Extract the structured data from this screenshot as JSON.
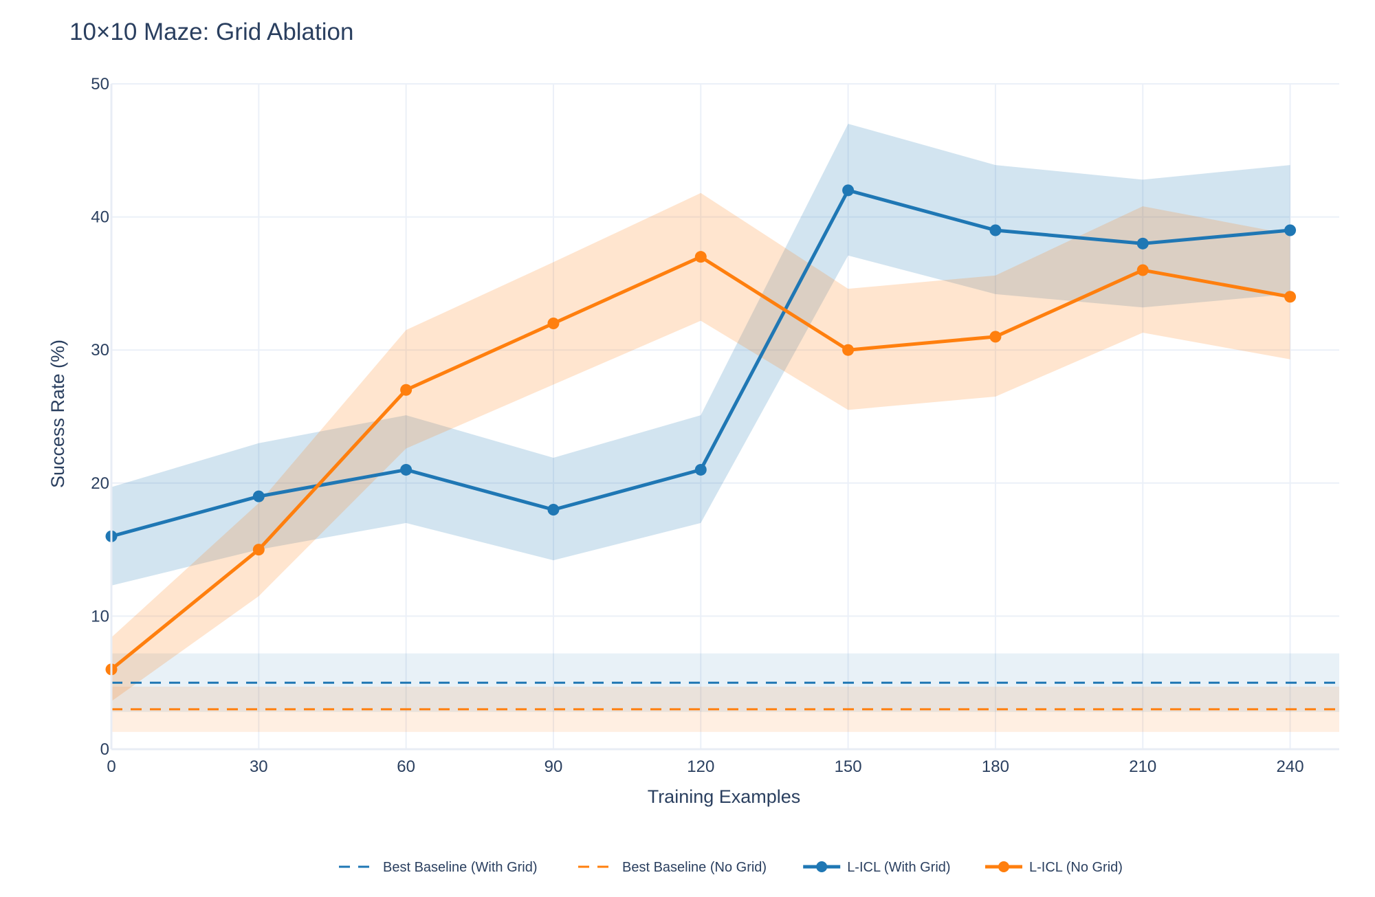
{
  "chart_data": {
    "type": "line",
    "title": "10×10 Maze: Grid Ablation",
    "xlabel": "Training Examples",
    "ylabel": "Success Rate (%)",
    "xlim": [
      0,
      250
    ],
    "ylim": [
      0,
      50
    ],
    "xticks": [
      0,
      30,
      60,
      90,
      120,
      150,
      180,
      210,
      240
    ],
    "yticks": [
      0,
      10,
      20,
      30,
      40,
      50
    ],
    "grid": true,
    "legend_position": "bottom-center",
    "x": [
      0,
      30,
      60,
      90,
      120,
      150,
      180,
      210,
      240
    ],
    "baselines": [
      {
        "name": "Best Baseline (With Grid)",
        "value": 5,
        "band": [
          2.8,
          7.2
        ],
        "color": "#1f77b4",
        "dash": "dashed"
      },
      {
        "name": "Best Baseline (No Grid)",
        "value": 3,
        "band": [
          1.3,
          4.7
        ],
        "color": "#ff7f0e",
        "dash": "dashed"
      }
    ],
    "series": [
      {
        "name": "L-ICL (With Grid)",
        "color": "#1f77b4",
        "values": [
          16,
          19,
          21,
          18,
          21,
          42,
          39,
          38,
          39
        ],
        "lower": [
          12.3,
          15,
          17,
          14.2,
          17,
          37.1,
          34.2,
          33.2,
          34.2
        ],
        "upper": [
          19.7,
          23,
          25.1,
          21.9,
          25.1,
          47,
          43.9,
          42.8,
          43.9
        ]
      },
      {
        "name": "L-ICL (No Grid)",
        "color": "#ff7f0e",
        "values": [
          6,
          15,
          27,
          32,
          37,
          30,
          31,
          36,
          34
        ],
        "lower": [
          3.6,
          11.5,
          22.6,
          27.4,
          32.2,
          25.5,
          26.5,
          31.3,
          29.3
        ],
        "upper": [
          8.4,
          18.5,
          31.5,
          36.6,
          41.8,
          34.6,
          35.6,
          40.8,
          38.7
        ]
      }
    ]
  }
}
